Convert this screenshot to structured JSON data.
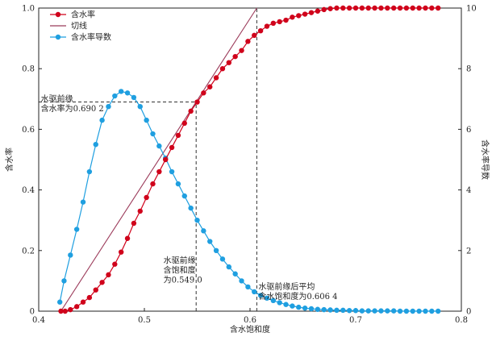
{
  "chart_data": {
    "type": "line",
    "xlabel": "含水饱和度",
    "ylabel_left": "含水率",
    "ylabel_right": "含水率导数",
    "xlim": [
      0.4,
      0.8
    ],
    "ylim_left": [
      0,
      1.0
    ],
    "ylim_right": [
      0,
      10
    ],
    "x_ticks": [
      "0.4",
      "0.5",
      "0.6",
      "0.7",
      "0.8"
    ],
    "y_ticks_left": [
      "0",
      "0.2",
      "0.4",
      "0.6",
      "0.8",
      "1.0"
    ],
    "y_ticks_right": [
      "0",
      "2",
      "4",
      "6",
      "8",
      "10"
    ],
    "grid": false,
    "legend_position": "top-left",
    "colors": {
      "fw": "#d0021b",
      "tangent": "#9b3a5a",
      "derivative": "#1f9fe0",
      "axis": "#222222",
      "dashed": "#333333"
    },
    "series": [
      {
        "name": "含水率",
        "axis": "left",
        "x": [
          0.421,
          0.425,
          0.43,
          0.436,
          0.442,
          0.448,
          0.454,
          0.46,
          0.466,
          0.472,
          0.478,
          0.484,
          0.49,
          0.496,
          0.502,
          0.508,
          0.514,
          0.52,
          0.526,
          0.532,
          0.538,
          0.544,
          0.55,
          0.556,
          0.562,
          0.568,
          0.574,
          0.58,
          0.586,
          0.592,
          0.598,
          0.604,
          0.61,
          0.616,
          0.622,
          0.628,
          0.634,
          0.64,
          0.646,
          0.652,
          0.658,
          0.664,
          0.67,
          0.676,
          0.682,
          0.688,
          0.694,
          0.7,
          0.706,
          0.712,
          0.718,
          0.724,
          0.73,
          0.736,
          0.742,
          0.748,
          0.754,
          0.76,
          0.766,
          0.772,
          0.778
        ],
        "y": [
          0,
          0,
          0.005,
          0.015,
          0.03,
          0.045,
          0.07,
          0.095,
          0.12,
          0.155,
          0.195,
          0.24,
          0.29,
          0.33,
          0.375,
          0.42,
          0.46,
          0.5,
          0.54,
          0.58,
          0.62,
          0.66,
          0.69,
          0.72,
          0.74,
          0.77,
          0.8,
          0.82,
          0.84,
          0.86,
          0.89,
          0.91,
          0.925,
          0.94,
          0.95,
          0.955,
          0.96,
          0.97,
          0.975,
          0.98,
          0.985,
          0.99,
          0.995,
          0.998,
          1.0,
          1.0,
          1.0,
          1.0,
          1.0,
          1.0,
          1.0,
          1.0,
          1.0,
          1.0,
          1.0,
          1.0,
          1.0,
          1.0,
          1.0,
          1.0,
          1.0
        ]
      },
      {
        "name": "切线",
        "axis": "left",
        "x": [
          0.421,
          0.6064
        ],
        "y": [
          0,
          1.0
        ]
      },
      {
        "name": "含水率导数",
        "axis": "right",
        "x": [
          0.42,
          0.424,
          0.43,
          0.436,
          0.442,
          0.448,
          0.454,
          0.46,
          0.466,
          0.472,
          0.478,
          0.484,
          0.49,
          0.496,
          0.502,
          0.508,
          0.514,
          0.52,
          0.526,
          0.532,
          0.538,
          0.544,
          0.55,
          0.556,
          0.562,
          0.568,
          0.574,
          0.58,
          0.586,
          0.592,
          0.598,
          0.604,
          0.61,
          0.616,
          0.622,
          0.628,
          0.634,
          0.64,
          0.646,
          0.652,
          0.658,
          0.664,
          0.67,
          0.676,
          0.682,
          0.688,
          0.694,
          0.7,
          0.706,
          0.712,
          0.718,
          0.724,
          0.73,
          0.736,
          0.742,
          0.748,
          0.754,
          0.76,
          0.766,
          0.772,
          0.778
        ],
        "y": [
          0.3,
          1.0,
          1.85,
          2.7,
          3.6,
          4.6,
          5.5,
          6.3,
          6.75,
          7.1,
          7.25,
          7.2,
          7.05,
          6.75,
          6.3,
          5.85,
          5.45,
          5.05,
          4.6,
          4.2,
          3.8,
          3.4,
          3.0,
          2.65,
          2.3,
          2.0,
          1.72,
          1.46,
          1.23,
          1.0,
          0.8,
          0.64,
          0.52,
          0.43,
          0.35,
          0.28,
          0.22,
          0.17,
          0.13,
          0.1,
          0.08,
          0.06,
          0.05,
          0.04,
          0.03,
          0.03,
          0.02,
          0.02,
          0.01,
          0.01,
          0.01,
          0.01,
          0.01,
          0.01,
          0.0,
          0.0,
          0.0,
          0.0,
          0.0,
          0.0,
          0.0
        ]
      }
    ],
    "dashed_lines": [
      {
        "from": [
          0.4,
          0.6902
        ],
        "to": [
          0.549,
          0.6902
        ]
      },
      {
        "from": [
          0.549,
          0
        ],
        "to": [
          0.549,
          0.6902
        ]
      },
      {
        "from": [
          0.6064,
          0
        ],
        "to": [
          0.6064,
          1.0
        ]
      }
    ],
    "annotations": [
      {
        "lines": [
          "水驱前缘",
          "含水率为0.690 2"
        ],
        "x": 0.402,
        "y": 0.66
      },
      {
        "lines": [
          "水驱前缘",
          "含饱和度",
          "为0.549 0"
        ],
        "x": 0.518,
        "y": 0.095
      },
      {
        "lines": [
          "水驱前缘后平均",
          "含水饱和度为0.606 4"
        ],
        "x": 0.6064,
        "y": 0.04
      }
    ]
  }
}
